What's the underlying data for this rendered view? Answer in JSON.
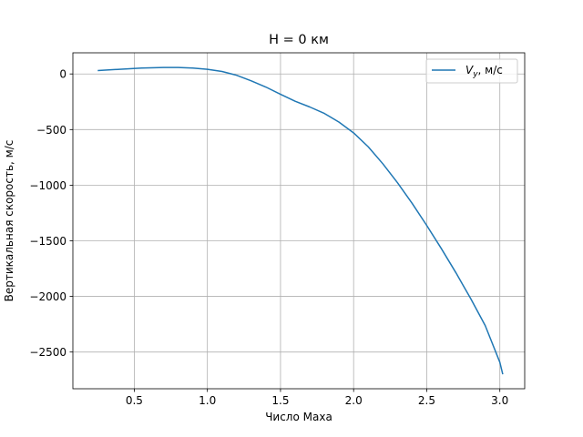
{
  "chart_data": {
    "type": "line",
    "title": "H = 0 км",
    "xlabel": "Число Маха",
    "ylabel": "Вертикальная скорость, м/с",
    "xlim": [
      0.08,
      3.17
    ],
    "ylim": [
      -2830,
      190
    ],
    "x_ticks": [
      0.5,
      1.0,
      1.5,
      2.0,
      2.5,
      3.0
    ],
    "x_tick_labels": [
      "0.5",
      "1.0",
      "1.5",
      "2.0",
      "2.5",
      "3.0"
    ],
    "y_ticks": [
      0,
      -500,
      -1000,
      -1500,
      -2000,
      -2500
    ],
    "y_tick_labels": [
      "0",
      "−500",
      "−1000",
      "−1500",
      "−2000",
      "−2500"
    ],
    "grid": true,
    "legend_position": "top-right",
    "series": [
      {
        "name": "V_y,  м/с",
        "name_main": "V",
        "name_sub": "y",
        "name_rest": ",  м/с",
        "color": "#1f77b4",
        "x": [
          0.25,
          0.4,
          0.55,
          0.7,
          0.8,
          0.9,
          1.0,
          1.1,
          1.2,
          1.3,
          1.4,
          1.5,
          1.6,
          1.7,
          1.8,
          1.9,
          2.0,
          2.1,
          2.2,
          2.3,
          2.4,
          2.5,
          2.6,
          2.7,
          2.8,
          2.9,
          3.0,
          3.02
        ],
        "y": [
          30,
          42,
          53,
          58,
          58,
          53,
          42,
          22,
          -12,
          -62,
          -118,
          -183,
          -245,
          -297,
          -355,
          -433,
          -530,
          -655,
          -808,
          -978,
          -1163,
          -1362,
          -1570,
          -1788,
          -2018,
          -2262,
          -2592,
          -2700
        ]
      }
    ]
  }
}
